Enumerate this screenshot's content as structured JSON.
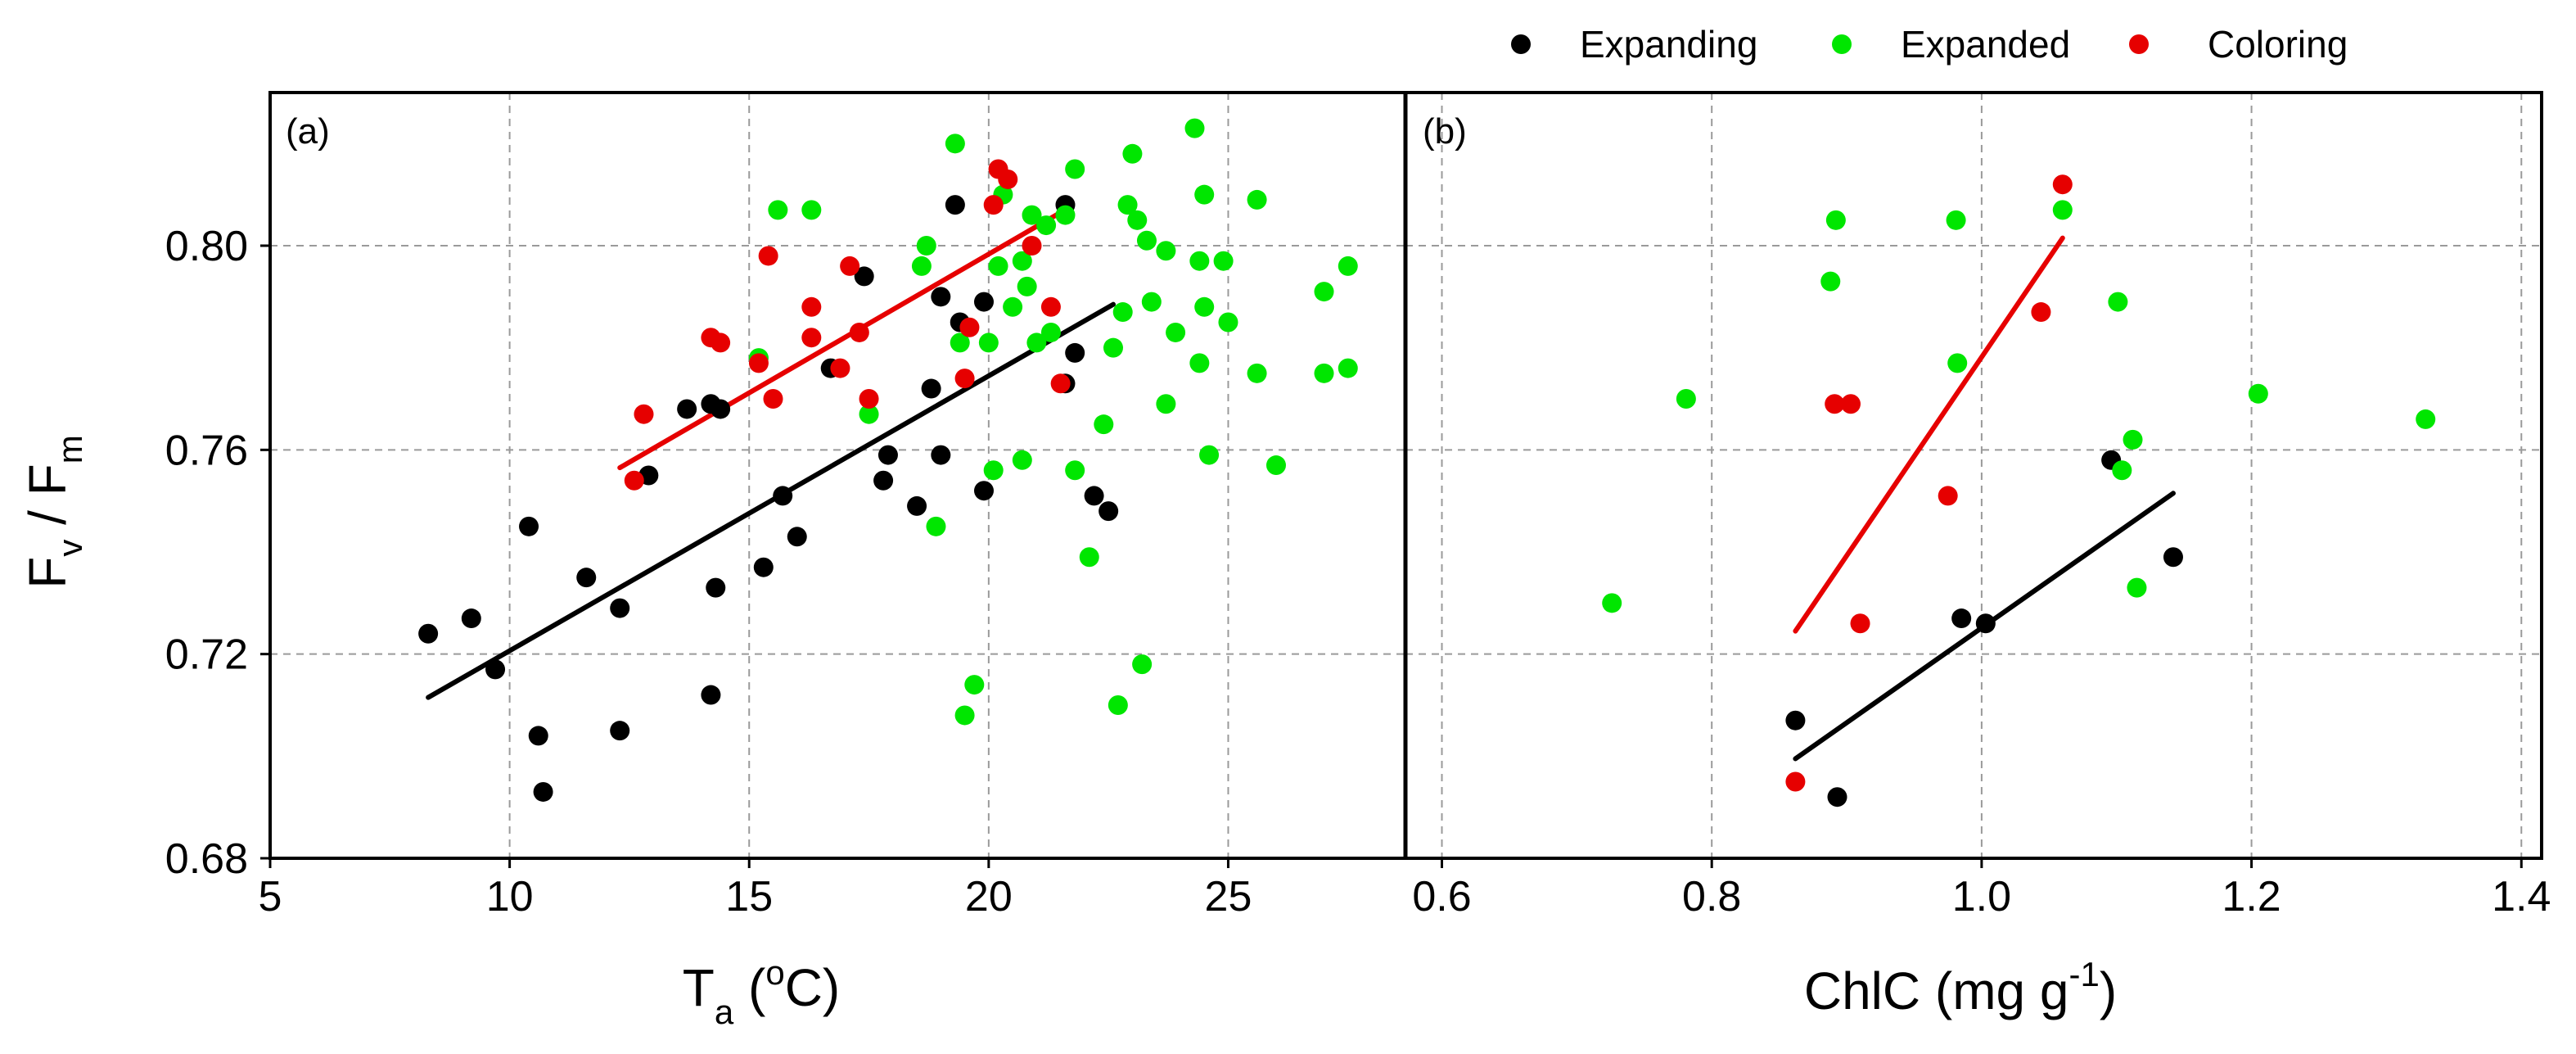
{
  "chart_data": {
    "type": "scatter",
    "legend": {
      "placement": "top-right",
      "entries": [
        {
          "key": "expanding",
          "label": "Expanding",
          "color": "#000000"
        },
        {
          "key": "expanded",
          "label": "Expanded",
          "color": "#00e600"
        },
        {
          "key": "coloring",
          "label": "Coloring",
          "color": "#e60000"
        }
      ]
    },
    "ylabel": {
      "main": "F",
      "sub1": "v",
      "mid": " / F",
      "sub2": "m"
    },
    "ylim": [
      0.68,
      0.83
    ],
    "yticks": [
      {
        "value": 0.68,
        "label": "0.68"
      },
      {
        "value": 0.72,
        "label": "0.72"
      },
      {
        "value": 0.76,
        "label": "0.76"
      },
      {
        "value": 0.8,
        "label": "0.80"
      }
    ],
    "panels": [
      {
        "id": "a",
        "label": "(a)",
        "xlabel": {
          "main": "T",
          "sub": "a",
          "rest": " (",
          "sup": "o",
          "end": "C)"
        },
        "xlim": [
          5,
          28.7
        ],
        "xticks": [
          {
            "value": 5,
            "label": "5"
          },
          {
            "value": 10,
            "label": "10"
          },
          {
            "value": 15,
            "label": "15"
          },
          {
            "value": 20,
            "label": "20"
          },
          {
            "value": 25,
            "label": "25"
          }
        ],
        "series": [
          {
            "key": "expanding",
            "points": [
              [
                8.3,
                0.724
              ],
              [
                9.2,
                0.727
              ],
              [
                9.7,
                0.717
              ],
              [
                10.4,
                0.745
              ],
              [
                10.6,
                0.704
              ],
              [
                10.7,
                0.693
              ],
              [
                11.6,
                0.735
              ],
              [
                12.3,
                0.729
              ],
              [
                12.3,
                0.705
              ],
              [
                12.9,
                0.755
              ],
              [
                13.7,
                0.768
              ],
              [
                14.2,
                0.769
              ],
              [
                14.2,
                0.712
              ],
              [
                14.3,
                0.733
              ],
              [
                14.4,
                0.768
              ],
              [
                15.3,
                0.737
              ],
              [
                15.7,
                0.751
              ],
              [
                16.0,
                0.743
              ],
              [
                16.7,
                0.776
              ],
              [
                17.4,
                0.794
              ],
              [
                17.8,
                0.754
              ],
              [
                17.9,
                0.759
              ],
              [
                18.5,
                0.749
              ],
              [
                18.8,
                0.772
              ],
              [
                19.0,
                0.79
              ],
              [
                19.0,
                0.759
              ],
              [
                19.3,
                0.808
              ],
              [
                19.4,
                0.785
              ],
              [
                19.9,
                0.789
              ],
              [
                19.9,
                0.752
              ],
              [
                21.6,
                0.773
              ],
              [
                21.6,
                0.808
              ],
              [
                21.8,
                0.779
              ],
              [
                22.2,
                0.751
              ],
              [
                22.5,
                0.748
              ]
            ]
          },
          {
            "key": "expanded",
            "points": [
              [
                15.2,
                0.778
              ],
              [
                15.6,
                0.807
              ],
              [
                16.3,
                0.807
              ],
              [
                17.5,
                0.767
              ],
              [
                18.6,
                0.796
              ],
              [
                18.7,
                0.8
              ],
              [
                18.9,
                0.745
              ],
              [
                19.3,
                0.82
              ],
              [
                19.4,
                0.781
              ],
              [
                19.5,
                0.708
              ],
              [
                19.7,
                0.714
              ],
              [
                20.0,
                0.781
              ],
              [
                20.1,
                0.756
              ],
              [
                20.2,
                0.796
              ],
              [
                20.3,
                0.81
              ],
              [
                20.5,
                0.788
              ],
              [
                20.7,
                0.758
              ],
              [
                20.7,
                0.797
              ],
              [
                20.8,
                0.792
              ],
              [
                20.9,
                0.806
              ],
              [
                21.0,
                0.781
              ],
              [
                21.2,
                0.804
              ],
              [
                21.3,
                0.783
              ],
              [
                21.6,
                0.806
              ],
              [
                21.8,
                0.815
              ],
              [
                21.8,
                0.756
              ],
              [
                22.1,
                0.739
              ],
              [
                22.4,
                0.765
              ],
              [
                22.6,
                0.78
              ],
              [
                22.7,
                0.71
              ],
              [
                22.8,
                0.787
              ],
              [
                22.9,
                0.808
              ],
              [
                23.0,
                0.818
              ],
              [
                23.1,
                0.805
              ],
              [
                23.2,
                0.718
              ],
              [
                23.3,
                0.801
              ],
              [
                23.4,
                0.789
              ],
              [
                23.7,
                0.769
              ],
              [
                23.7,
                0.799
              ],
              [
                23.9,
                0.783
              ],
              [
                24.3,
                0.823
              ],
              [
                24.4,
                0.777
              ],
              [
                24.4,
                0.797
              ],
              [
                24.5,
                0.81
              ],
              [
                24.5,
                0.788
              ],
              [
                24.6,
                0.759
              ],
              [
                24.9,
                0.797
              ],
              [
                25.0,
                0.785
              ],
              [
                25.6,
                0.809
              ],
              [
                25.6,
                0.775
              ],
              [
                26.0,
                0.757
              ],
              [
                27.0,
                0.775
              ],
              [
                27.0,
                0.791
              ],
              [
                27.5,
                0.796
              ],
              [
                27.5,
                0.776
              ]
            ]
          },
          {
            "key": "coloring",
            "points": [
              [
                12.6,
                0.754
              ],
              [
                12.8,
                0.767
              ],
              [
                14.2,
                0.782
              ],
              [
                14.4,
                0.781
              ],
              [
                15.2,
                0.777
              ],
              [
                15.4,
                0.798
              ],
              [
                15.5,
                0.77
              ],
              [
                16.3,
                0.788
              ],
              [
                16.3,
                0.782
              ],
              [
                16.9,
                0.776
              ],
              [
                17.1,
                0.796
              ],
              [
                17.3,
                0.783
              ],
              [
                17.5,
                0.77
              ],
              [
                19.5,
                0.774
              ],
              [
                19.6,
                0.784
              ],
              [
                20.1,
                0.808
              ],
              [
                20.2,
                0.815
              ],
              [
                20.4,
                0.813
              ],
              [
                20.9,
                0.8
              ],
              [
                21.3,
                0.788
              ],
              [
                21.5,
                0.773
              ]
            ]
          }
        ],
        "fits": [
          {
            "key": "expanding",
            "x": [
              8.3,
              22.6
            ],
            "y": [
              0.7115,
              0.7885
            ]
          },
          {
            "key": "coloring",
            "x": [
              12.3,
              21.5
            ],
            "y": [
              0.7565,
              0.8065
            ]
          }
        ]
      },
      {
        "id": "b",
        "label": "(b)",
        "xlabel": {
          "main": "ChlC (mg g",
          "sup": "-1",
          "end": ")"
        },
        "xlim": [
          0.573,
          1.415
        ],
        "xticks": [
          {
            "value": 0.6,
            "label": "0.6"
          },
          {
            "value": 0.8,
            "label": "0.8"
          },
          {
            "value": 1.0,
            "label": "1.0"
          },
          {
            "value": 1.2,
            "label": "1.2"
          },
          {
            "value": 1.4,
            "label": "1.4"
          }
        ],
        "series": [
          {
            "key": "expanding",
            "points": [
              [
                0.862,
                0.707
              ],
              [
                0.893,
                0.692
              ],
              [
                0.985,
                0.727
              ],
              [
                1.003,
                0.726
              ],
              [
                1.096,
                0.758
              ],
              [
                1.142,
                0.739
              ]
            ]
          },
          {
            "key": "expanded",
            "points": [
              [
                0.726,
                0.73
              ],
              [
                0.781,
                0.77
              ],
              [
                0.888,
                0.793
              ],
              [
                0.892,
                0.805
              ],
              [
                0.981,
                0.805
              ],
              [
                0.982,
                0.777
              ],
              [
                1.06,
                0.807
              ],
              [
                1.101,
                0.789
              ],
              [
                1.104,
                0.756
              ],
              [
                1.112,
                0.762
              ],
              [
                1.115,
                0.733
              ],
              [
                1.205,
                0.771
              ],
              [
                1.329,
                0.766
              ]
            ]
          },
          {
            "key": "coloring",
            "points": [
              [
                0.862,
                0.695
              ],
              [
                0.891,
                0.769
              ],
              [
                0.903,
                0.769
              ],
              [
                0.91,
                0.726
              ],
              [
                0.975,
                0.751
              ],
              [
                1.044,
                0.787
              ],
              [
                1.06,
                0.812
              ]
            ]
          }
        ],
        "fits": [
          {
            "key": "expanding",
            "x": [
              0.862,
              1.142
            ],
            "y": [
              0.6995,
              0.7515
            ]
          },
          {
            "key": "coloring",
            "x": [
              0.862,
              1.06
            ],
            "y": [
              0.7245,
              0.8015
            ]
          }
        ]
      }
    ]
  }
}
